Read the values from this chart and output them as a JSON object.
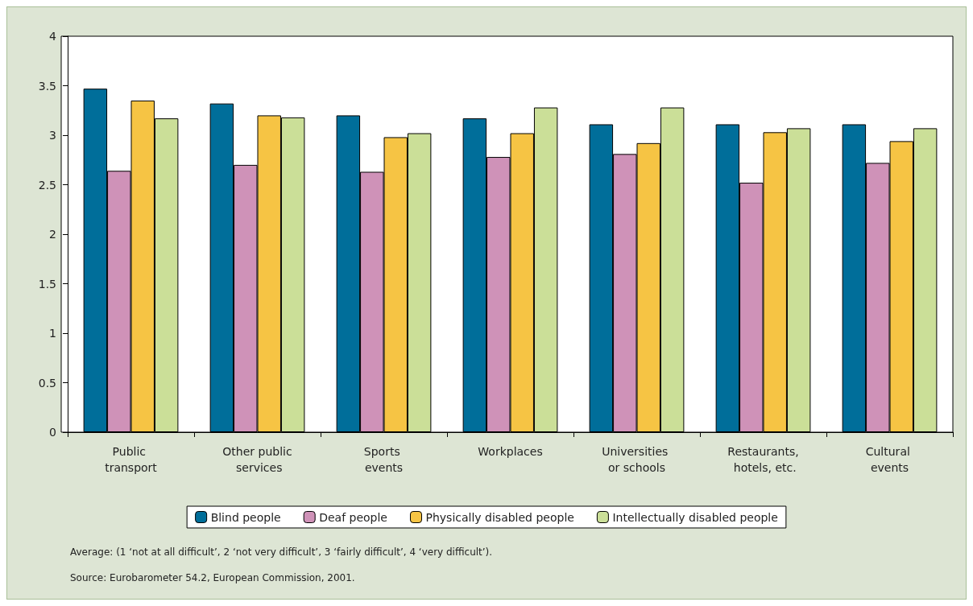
{
  "chart_data": {
    "type": "bar",
    "categories": [
      "Public transport",
      "Other public services",
      "Sports events",
      "Workplaces",
      "Universities or schools",
      "Restaurants, hotels, etc.",
      "Cultural events"
    ],
    "series": [
      {
        "name": "Blind people",
        "color": "#006e9a",
        "values": [
          3.47,
          3.32,
          3.2,
          3.17,
          3.11,
          3.11,
          3.11
        ]
      },
      {
        "name": "Deaf people",
        "color": "#cf92b8",
        "values": [
          2.64,
          2.7,
          2.63,
          2.78,
          2.81,
          2.52,
          2.72
        ]
      },
      {
        "name": "Physically disabled people",
        "color": "#f6c444",
        "values": [
          3.35,
          3.2,
          2.98,
          3.02,
          2.92,
          3.03,
          2.94
        ]
      },
      {
        "name": "Intellectually disabled people",
        "color": "#cbdf98",
        "values": [
          3.17,
          3.18,
          3.02,
          3.28,
          3.28,
          3.07,
          3.07
        ]
      }
    ],
    "ylim": [
      0,
      4
    ],
    "yticks": [
      0,
      0.5,
      1,
      1.5,
      2,
      2.5,
      3,
      3.5,
      4
    ],
    "grid": false,
    "legend": "bottom",
    "annotations": [
      "Average: (1 ‘not at all difficult’, 2 ‘not very difficult’, 3 ‘fairly difficult’, 4 ‘very difficult’).",
      "Source: Eurobarometer 54.2, European Commission, 2001."
    ]
  }
}
